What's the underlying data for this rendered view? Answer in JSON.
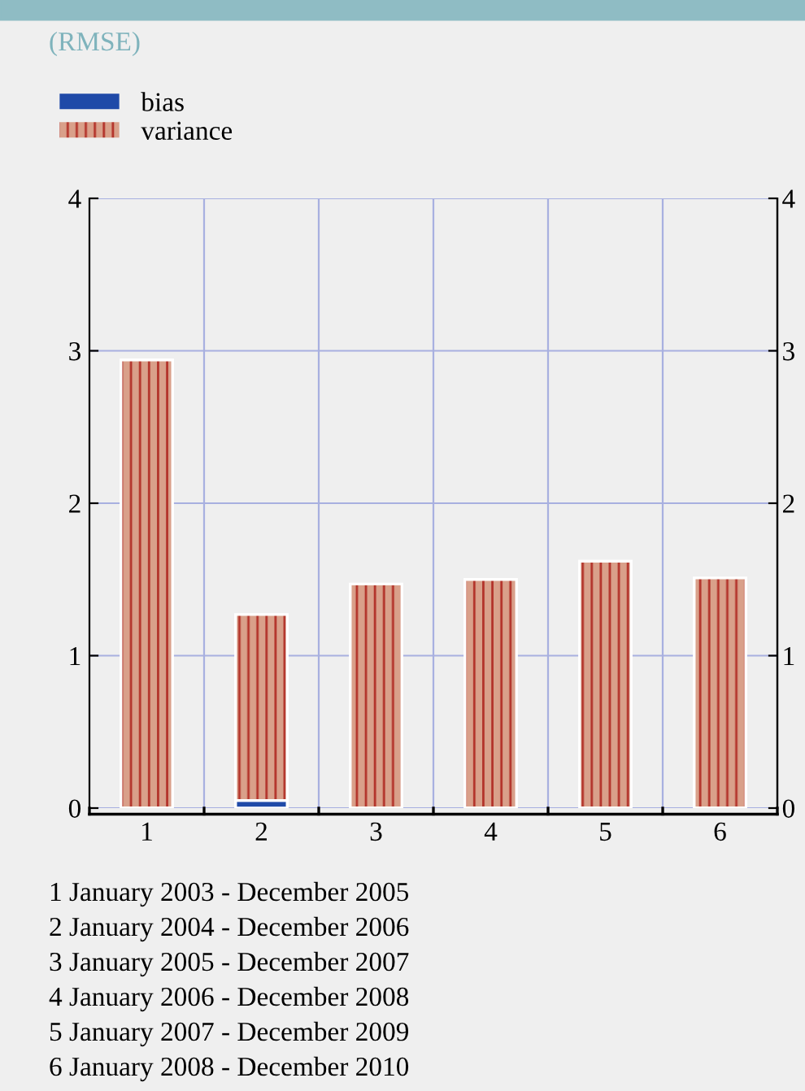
{
  "chart_data": {
    "type": "bar",
    "title": "(RMSE)",
    "stacked": true,
    "categories": [
      "1",
      "2",
      "3",
      "4",
      "5",
      "6"
    ],
    "series": [
      {
        "name": "bias",
        "color": "#1f4aa8",
        "values": [
          0,
          0.05,
          0,
          0,
          0,
          0
        ]
      },
      {
        "name": "variance",
        "color": "#d9a08a",
        "values": [
          2.94,
          1.22,
          1.47,
          1.5,
          1.62,
          1.51
        ]
      }
    ],
    "ylim": [
      0,
      4
    ],
    "yticks": [
      0,
      1,
      2,
      3,
      4
    ],
    "y2lim": [
      0,
      4
    ],
    "y2ticks": [
      0,
      1,
      2,
      3,
      4
    ],
    "grid": true,
    "legend": "top left",
    "annotations": [
      "1 January 2003 - December 2005",
      "2 January 2004 - December 2006",
      "3 January 2005 - December 2007",
      "4 January 2006 - December 2008",
      "5 January 2007 - December 2009",
      "6 January 2008 - December 2010"
    ]
  }
}
